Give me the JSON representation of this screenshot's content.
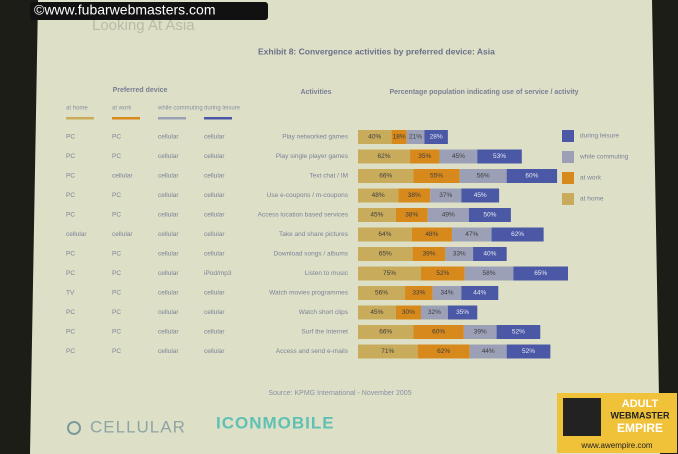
{
  "watermark": "©www.fubarwebmasters.com",
  "slide_title": "Looking At Asia",
  "preferred_device": {
    "title": "Preferred device",
    "columns": [
      "at home",
      "at work",
      "while commuting",
      "during leisure"
    ],
    "rows": [
      [
        "PC",
        "PC",
        "cellular",
        "cellular"
      ],
      [
        "PC",
        "PC",
        "cellular",
        "cellular"
      ],
      [
        "PC",
        "cellular",
        "cellular",
        "cellular"
      ],
      [
        "PC",
        "PC",
        "cellular",
        "cellular"
      ],
      [
        "PC",
        "PC",
        "cellular",
        "cellular"
      ],
      [
        "cellular",
        "cellular",
        "cellular",
        "cellular"
      ],
      [
        "PC",
        "PC",
        "cellular",
        "cellular"
      ],
      [
        "PC",
        "PC",
        "cellular",
        "iPod/mp3"
      ],
      [
        "TV",
        "PC",
        "cellular",
        "cellular"
      ],
      [
        "PC",
        "PC",
        "cellular",
        "cellular"
      ],
      [
        "PC",
        "PC",
        "cellular",
        "cellular"
      ],
      [
        "PC",
        "PC",
        "cellular",
        "cellular"
      ]
    ]
  },
  "chart_data": {
    "type": "stacked-bar-horizontal",
    "title": "Exhibit 8: Convergence activities by preferred device: Asia",
    "category_label": "Activities",
    "value_label": "Percentage population indicating use of service / activity",
    "categories": [
      "Play networked games",
      "Play single player games",
      "Text chat / IM",
      "Use e-coupons / m-coupons",
      "Access location based services",
      "Take and share pictures",
      "Download songs / albums",
      "Listen to music",
      "Watch movies programmes",
      "Watch short clips",
      "Surf the Internet",
      "Access and send e-mails"
    ],
    "series": [
      {
        "name": "at home",
        "color": "#c9ab5c",
        "values": [
          40,
          62,
          66,
          48,
          45,
          64,
          65,
          75,
          56,
          45,
          66,
          71
        ],
        "value_labels": [
          "40%",
          "62%",
          "66%",
          "48%",
          "45%",
          "64%",
          "65%",
          "75%",
          "56%",
          "45%",
          "66%",
          "71%"
        ]
      },
      {
        "name": "at work",
        "color": "#d8891c",
        "values": [
          18,
          35,
          55,
          38,
          38,
          48,
          39,
          52,
          33,
          30,
          60,
          62
        ],
        "value_labels": [
          "18%",
          "35%",
          "55%",
          "38%",
          "38%",
          "48%",
          "39%",
          "52%",
          "33%",
          "30%",
          "60%",
          "62%"
        ]
      },
      {
        "name": "while commuting",
        "color": "#9ba0b6",
        "values": [
          21,
          45,
          56,
          37,
          49,
          47,
          33,
          58,
          34,
          32,
          39,
          44
        ],
        "value_labels": [
          "21%",
          "45%",
          "56%",
          "37%",
          "49%",
          "47%",
          "33%",
          "58%",
          "34%",
          "32%",
          "39%",
          "44%"
        ]
      },
      {
        "name": "during leisure",
        "color": "#4a58a6",
        "values": [
          28,
          53,
          60,
          45,
          50,
          62,
          40,
          65,
          44,
          35,
          52,
          52
        ],
        "value_labels": [
          "28%",
          "53%",
          "60%",
          "45%",
          "50%",
          "62%",
          "40%",
          "65%",
          "44%",
          "35%",
          "52%",
          "52%"
        ]
      }
    ],
    "legend": "right",
    "source": "Source: KPMG International - November 2005"
  },
  "footer": {
    "left": "CELLULAR",
    "right": "ICONMOBILE"
  },
  "logo": {
    "line1": "ADULT",
    "line2": "WEBMASTER",
    "line3": "EMPIRE",
    "url": "www.awempire.com"
  }
}
